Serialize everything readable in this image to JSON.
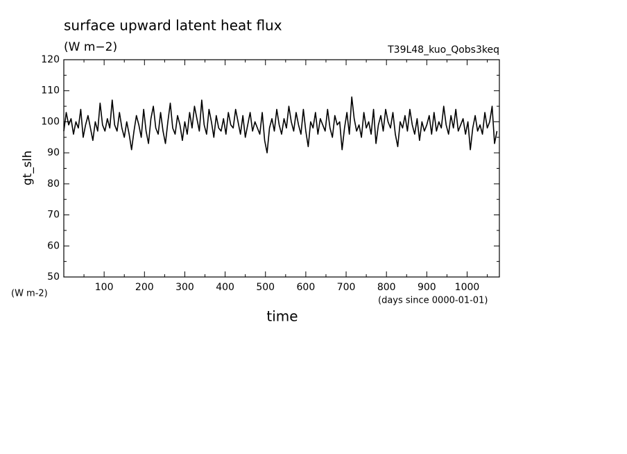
{
  "chart_data": {
    "type": "line",
    "title": "surface upward latent heat flux",
    "subtitle": "(W m−2)",
    "run_label": "T39L48_kuo_Qobs3keq",
    "ylabel": "gt_slh",
    "y_units": "(W m-2)",
    "x_units": "(days since 0000-01-01)",
    "xlabel": "time",
    "color": "#000000",
    "x": [
      0,
      6,
      12,
      18,
      24,
      30,
      36,
      42,
      48,
      54,
      60,
      66,
      72,
      78,
      84,
      90,
      96,
      102,
      108,
      114,
      120,
      126,
      132,
      138,
      144,
      150,
      156,
      162,
      168,
      174,
      180,
      186,
      192,
      198,
      204,
      210,
      216,
      222,
      228,
      234,
      240,
      246,
      252,
      258,
      264,
      270,
      276,
      282,
      288,
      294,
      300,
      306,
      312,
      318,
      324,
      330,
      336,
      342,
      348,
      354,
      360,
      366,
      372,
      378,
      384,
      390,
      396,
      402,
      408,
      414,
      420,
      426,
      432,
      438,
      444,
      450,
      456,
      462,
      468,
      474,
      480,
      486,
      492,
      498,
      504,
      510,
      516,
      522,
      528,
      534,
      540,
      546,
      552,
      558,
      564,
      570,
      576,
      582,
      588,
      594,
      600,
      606,
      612,
      618,
      624,
      630,
      636,
      642,
      648,
      654,
      660,
      666,
      672,
      678,
      684,
      690,
      696,
      702,
      708,
      714,
      720,
      726,
      732,
      738,
      744,
      750,
      756,
      762,
      768,
      774,
      780,
      786,
      792,
      798,
      804,
      810,
      816,
      822,
      828,
      834,
      840,
      846,
      852,
      858,
      864,
      870,
      876,
      882,
      888,
      894,
      900,
      906,
      912,
      918,
      924,
      930,
      936,
      942,
      948,
      954,
      960,
      966,
      972,
      978,
      984,
      990,
      996,
      1002,
      1008,
      1014,
      1020,
      1026,
      1032,
      1038,
      1044,
      1050,
      1056,
      1062,
      1068,
      1074
    ],
    "values": [
      97,
      103,
      99,
      101,
      96,
      100,
      98,
      104,
      95,
      99,
      102,
      98,
      94,
      100,
      97,
      106,
      99,
      97,
      101,
      98,
      107,
      99,
      97,
      103,
      98,
      95,
      100,
      96,
      91,
      97,
      102,
      99,
      95,
      104,
      97,
      93,
      101,
      105,
      98,
      96,
      103,
      97,
      93,
      100,
      106,
      98,
      96,
      102,
      99,
      94,
      100,
      96,
      103,
      98,
      105,
      101,
      97,
      107,
      99,
      96,
      104,
      100,
      95,
      102,
      98,
      97,
      101,
      96,
      103,
      99,
      98,
      104,
      100,
      96,
      102,
      95,
      99,
      103,
      97,
      100,
      98,
      96,
      103,
      94,
      90,
      98,
      101,
      97,
      104,
      99,
      96,
      101,
      98,
      105,
      100,
      97,
      103,
      99,
      96,
      104,
      97,
      92,
      100,
      98,
      103,
      96,
      101,
      99,
      97,
      104,
      98,
      95,
      102,
      99,
      100,
      91,
      98,
      103,
      96,
      108,
      101,
      97,
      99,
      95,
      103,
      98,
      100,
      96,
      104,
      93,
      99,
      102,
      97,
      104,
      100,
      98,
      103,
      96,
      92,
      100,
      98,
      102,
      97,
      104,
      99,
      96,
      101,
      94,
      100,
      97,
      99,
      102,
      96,
      103,
      97,
      100,
      98,
      105,
      99,
      96,
      102,
      98,
      104,
      97,
      99,
      101,
      96,
      100,
      91,
      98,
      102,
      97,
      99,
      96,
      103,
      98,
      100,
      105,
      93,
      97
    ],
    "xlim": [
      0,
      1080
    ],
    "xticks": [
      100,
      200,
      300,
      400,
      500,
      600,
      700,
      800,
      900,
      1000
    ],
    "xminorticks": [
      50,
      150,
      250,
      350,
      450,
      550,
      650,
      750,
      850,
      950,
      1050
    ],
    "ylim": [
      50,
      120
    ],
    "yticks": [
      50,
      60,
      70,
      80,
      90,
      100,
      110,
      120
    ],
    "yminorticks": [
      55,
      65,
      75,
      85,
      95,
      105,
      115
    ]
  }
}
